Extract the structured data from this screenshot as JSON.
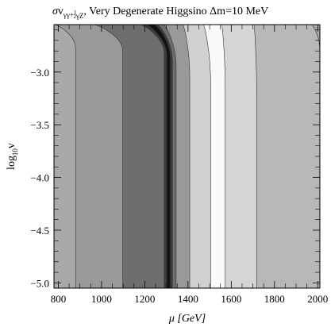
{
  "chart_data": {
    "type": "contour",
    "title": {
      "sigma": "σ",
      "v": "v",
      "sub_a": "γγ+",
      "frac_num": "1",
      "frac_den": "2",
      "sub_b": "γZ",
      "rest": ", Very Degenerate Higgsino Δm=10 MeV"
    },
    "xlabel": {
      "main": "μ [GeV]"
    },
    "ylabel": {
      "base": "log",
      "sub": "10",
      "var": "v"
    },
    "xlim": [
      780,
      2010
    ],
    "ylim": [
      -5.05,
      -2.55
    ],
    "x_ticks": [
      800,
      1000,
      1200,
      1400,
      1600,
      1800,
      2000
    ],
    "x_tick_labels": [
      "800",
      "1000",
      "1200",
      "1400",
      "1600",
      "1800",
      "2000"
    ],
    "y_ticks": [
      -3.0,
      -3.5,
      -4.0,
      -4.5,
      -5.0
    ],
    "y_tick_labels": [
      "−3.0",
      "−3.5",
      "−4.0",
      "−4.5",
      "−5.0"
    ],
    "background_color": "#a9a9a9",
    "regions": [
      {
        "level": 1,
        "color": "#b8b8b8",
        "x_bottom": 2010,
        "x_top": 1970,
        "curve": 5
      },
      {
        "level": 2,
        "color": "#d5d5d5",
        "x_bottom": 1718,
        "x_top": 1705,
        "curve": 25
      },
      {
        "level": 3,
        "color": "#fafafa",
        "x_bottom": 1572,
        "x_top": 1555,
        "curve": 20
      },
      {
        "level": 4,
        "color": "#d0d0d0",
        "x_bottom": 1505,
        "x_top": 1470,
        "curve": 18
      },
      {
        "level": 5,
        "color": "#999999",
        "x_bottom": 1408,
        "x_top": 1375,
        "curve": 15
      },
      {
        "level": 6,
        "color": "#6e6e6e",
        "x_bottom": 1345,
        "x_top": 1285,
        "curve": 11
      },
      {
        "level": 7,
        "color": "#3c3c3c",
        "x_bottom": 1328,
        "x_top": 1255,
        "curve": 9
      },
      {
        "level": 8,
        "color": "#121212",
        "x_bottom": 1318,
        "x_top": 1240,
        "curve": 8
      },
      {
        "level": 7,
        "color": "#3c3c3c",
        "x_bottom": 1302,
        "x_top": 1202,
        "curve": 7
      },
      {
        "level": 6,
        "color": "#6e6e6e",
        "x_bottom": 1290,
        "x_top": 1175,
        "curve": 6
      },
      {
        "level": 5,
        "color": "#999999",
        "x_bottom": 1098,
        "x_top": 960,
        "curve": 5
      },
      {
        "level": 4,
        "color": "#a9a9a9",
        "x_bottom": 880,
        "x_top": 780,
        "curve": 4
      }
    ]
  }
}
